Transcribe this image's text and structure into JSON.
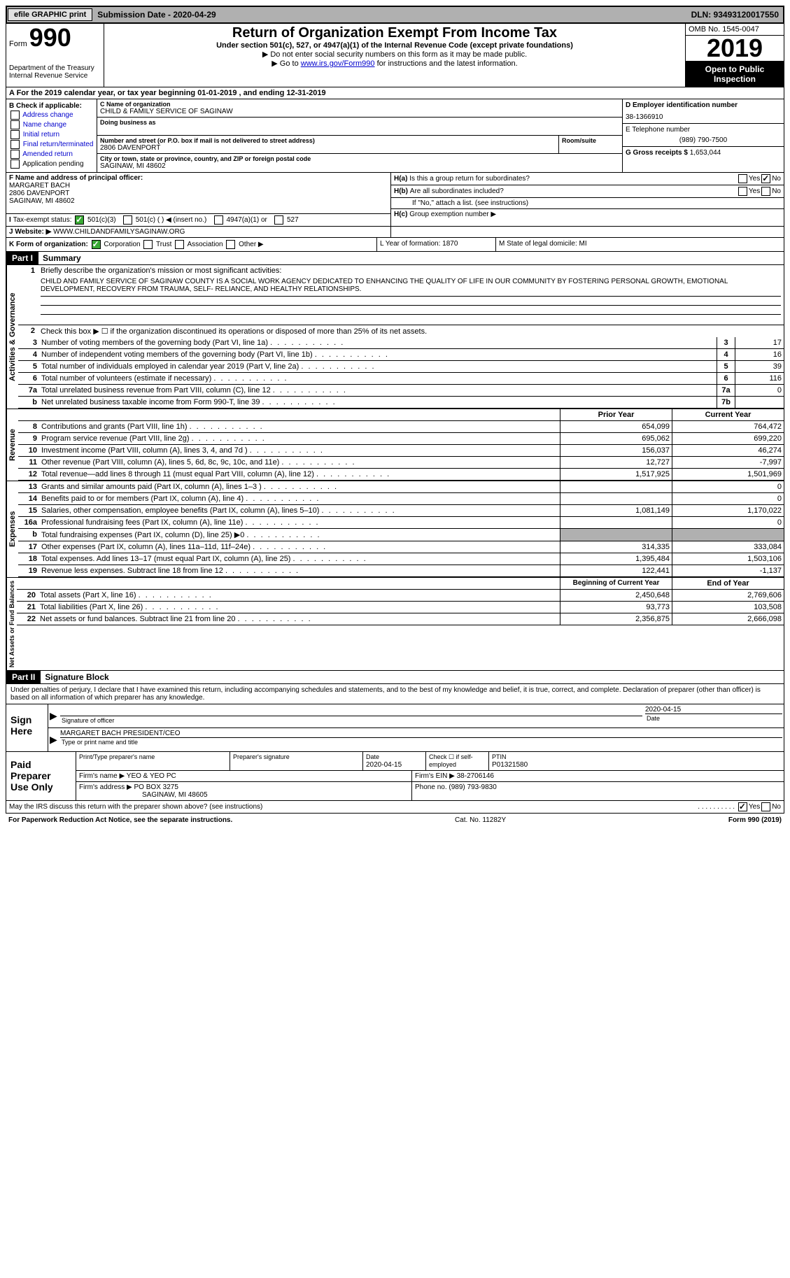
{
  "topbar": {
    "efile": "efile GRAPHIC print",
    "submission": "Submission Date - 2020-04-29",
    "dln": "DLN: 93493120017550"
  },
  "header": {
    "form_label": "Form",
    "form_number": "990",
    "dept": "Department of the Treasury\nInternal Revenue Service",
    "title": "Return of Organization Exempt From Income Tax",
    "subtitle": "Under section 501(c), 527, or 4947(a)(1) of the Internal Revenue Code (except private foundations)",
    "note1": "Do not enter social security numbers on this form as it may be made public.",
    "note2_pre": "Go to ",
    "note2_link": "www.irs.gov/Form990",
    "note2_post": " for instructions and the latest information.",
    "omb": "OMB No. 1545-0047",
    "year": "2019",
    "open": "Open to Public Inspection"
  },
  "row_a": "A For the 2019 calendar year, or tax year beginning 01-01-2019    , and ending 12-31-2019",
  "box_b": {
    "header": "B Check if applicable:",
    "opts": [
      "Address change",
      "Name change",
      "Initial return",
      "Final return/terminated",
      "Amended return",
      "Application pending"
    ]
  },
  "box_c": {
    "name_lab": "C Name of organization",
    "name": "CHILD & FAMILY SERVICE OF SAGINAW",
    "dba_lab": "Doing business as",
    "dba": "",
    "addr_lab": "Number and street (or P.O. box if mail is not delivered to street address)",
    "room_lab": "Room/suite",
    "addr": "2806 DAVENPORT",
    "city_lab": "City or town, state or province, country, and ZIP or foreign postal code",
    "city": "SAGINAW, MI  48602"
  },
  "box_d": {
    "ein_lab": "D Employer identification number",
    "ein": "38-1366910",
    "phone_lab": "E Telephone number",
    "phone": "(989) 790-7500",
    "gross_lab": "G Gross receipts $",
    "gross": "1,653,044"
  },
  "box_f": {
    "lab": "F Name and address of principal officer:",
    "name": "MARGARET BACH",
    "addr1": "2806 DAVENPORT",
    "addr2": "SAGINAW, MI  48602"
  },
  "box_h": {
    "a": "Is this a group return for subordinates?",
    "b": "Are all subordinates included?",
    "note": "If \"No,\" attach a list. (see instructions)",
    "c": "Group exemption number ▶"
  },
  "row_i": {
    "lab": "Tax-exempt status:",
    "o1": "501(c)(3)",
    "o2": "501(c) (  ) ◀ (insert no.)",
    "o3": "4947(a)(1) or",
    "o4": "527"
  },
  "row_j": {
    "lab": "J    Website: ▶",
    "val": "WWW.CHILDANDFAMILYSAGINAW.ORG"
  },
  "row_k": {
    "lab": "K Form of organization:",
    "opts": [
      "Corporation",
      "Trust",
      "Association",
      "Other ▶"
    ],
    "l": "L Year of formation: 1870",
    "m": "M State of legal domicile: MI"
  },
  "part1": {
    "header": "Part I",
    "title": "Summary"
  },
  "summary": {
    "s1_lab": "Briefly describe the organization's mission or most significant activities:",
    "s1_val": "CHILD AND FAMILY SERVICE OF SAGINAW COUNTY IS A SOCIAL WORK AGENCY DEDICATED TO ENHANCING THE QUALITY OF LIFE IN OUR COMMUNITY BY FOSTERING PERSONAL GROWTH, EMOTIONAL DEVELOPMENT, RECOVERY FROM TRAUMA, SELF- RELIANCE, AND HEALTHY RELATIONSHIPS.",
    "s2": "Check this box ▶ ☐  if the organization discontinued its operations or disposed of more than 25% of its net assets.",
    "lines": [
      {
        "n": "3",
        "d": "Number of voting members of the governing body (Part VI, line 1a)",
        "box": "3",
        "v": "17"
      },
      {
        "n": "4",
        "d": "Number of independent voting members of the governing body (Part VI, line 1b)",
        "box": "4",
        "v": "16"
      },
      {
        "n": "5",
        "d": "Total number of individuals employed in calendar year 2019 (Part V, line 2a)",
        "box": "5",
        "v": "39"
      },
      {
        "n": "6",
        "d": "Total number of volunteers (estimate if necessary)",
        "box": "6",
        "v": "116"
      },
      {
        "n": "7a",
        "d": "Total unrelated business revenue from Part VIII, column (C), line 12",
        "box": "7a",
        "v": "0"
      },
      {
        "n": "b",
        "d": "Net unrelated business taxable income from Form 990-T, line 39",
        "box": "7b",
        "v": ""
      }
    ]
  },
  "revenue": {
    "head": {
      "c1": "Prior Year",
      "c2": "Current Year"
    },
    "rows": [
      {
        "n": "8",
        "d": "Contributions and grants (Part VIII, line 1h)",
        "c1": "654,099",
        "c2": "764,472"
      },
      {
        "n": "9",
        "d": "Program service revenue (Part VIII, line 2g)",
        "c1": "695,062",
        "c2": "699,220"
      },
      {
        "n": "10",
        "d": "Investment income (Part VIII, column (A), lines 3, 4, and 7d )",
        "c1": "156,037",
        "c2": "46,274"
      },
      {
        "n": "11",
        "d": "Other revenue (Part VIII, column (A), lines 5, 6d, 8c, 9c, 10c, and 11e)",
        "c1": "12,727",
        "c2": "-7,997"
      },
      {
        "n": "12",
        "d": "Total revenue—add lines 8 through 11 (must equal Part VIII, column (A), line 12)",
        "c1": "1,517,925",
        "c2": "1,501,969"
      }
    ]
  },
  "expenses": {
    "rows": [
      {
        "n": "13",
        "d": "Grants and similar amounts paid (Part IX, column (A), lines 1–3 )",
        "c1": "",
        "c2": "0"
      },
      {
        "n": "14",
        "d": "Benefits paid to or for members (Part IX, column (A), line 4)",
        "c1": "",
        "c2": "0"
      },
      {
        "n": "15",
        "d": "Salaries, other compensation, employee benefits (Part IX, column (A), lines 5–10)",
        "c1": "1,081,149",
        "c2": "1,170,022"
      },
      {
        "n": "16a",
        "d": "Professional fundraising fees (Part IX, column (A), line 11e)",
        "c1": "",
        "c2": "0"
      },
      {
        "n": "b",
        "d": "Total fundraising expenses (Part IX, column (D), line 25) ▶0",
        "c1": "gray",
        "c2": "gray"
      },
      {
        "n": "17",
        "d": "Other expenses (Part IX, column (A), lines 11a–11d, 11f–24e)",
        "c1": "314,335",
        "c2": "333,084"
      },
      {
        "n": "18",
        "d": "Total expenses. Add lines 13–17 (must equal Part IX, column (A), line 25)",
        "c1": "1,395,484",
        "c2": "1,503,106"
      },
      {
        "n": "19",
        "d": "Revenue less expenses. Subtract line 18 from line 12",
        "c1": "122,441",
        "c2": "-1,137"
      }
    ]
  },
  "netassets": {
    "head": {
      "c1": "Beginning of Current Year",
      "c2": "End of Year"
    },
    "rows": [
      {
        "n": "20",
        "d": "Total assets (Part X, line 16)",
        "c1": "2,450,648",
        "c2": "2,769,606"
      },
      {
        "n": "21",
        "d": "Total liabilities (Part X, line 26)",
        "c1": "93,773",
        "c2": "103,508"
      },
      {
        "n": "22",
        "d": "Net assets or fund balances. Subtract line 21 from line 20",
        "c1": "2,356,875",
        "c2": "2,666,098"
      }
    ]
  },
  "part2": {
    "header": "Part II",
    "title": "Signature Block"
  },
  "sig": {
    "text": "Under penalties of perjury, I declare that I have examined this return, including accompanying schedules and statements, and to the best of my knowledge and belief, it is true, correct, and complete. Declaration of preparer (other than officer) is based on all information of which preparer has any knowledge.",
    "sign_here": "Sign Here",
    "date": "2020-04-15",
    "sig_lab": "Signature of officer",
    "date_lab": "Date",
    "name": "MARGARET BACH  PRESIDENT/CEO",
    "name_lab": "Type or print name and title"
  },
  "paid": {
    "label": "Paid Preparer Use Only",
    "h_name": "Print/Type preparer's name",
    "h_sig": "Preparer's signature",
    "h_date": "Date",
    "date": "2020-04-15",
    "h_check": "Check ☐ if self-employed",
    "h_ptin": "PTIN",
    "ptin": "P01321580",
    "firm_name_lab": "Firm's name    ▶",
    "firm_name": "YEO & YEO PC",
    "firm_ein_lab": "Firm's EIN ▶",
    "firm_ein": "38-2706146",
    "firm_addr_lab": "Firm's address ▶",
    "firm_addr": "PO BOX 3275",
    "firm_addr2": "SAGINAW, MI  48605",
    "phone_lab": "Phone no.",
    "phone": "(989) 793-9830"
  },
  "footer": {
    "q": "May the IRS discuss this return with the preparer shown above? (see instructions)",
    "paperwork": "For Paperwork Reduction Act Notice, see the separate instructions.",
    "cat": "Cat. No. 11282Y",
    "form": "Form 990 (2019)"
  },
  "labels": {
    "yes": "Yes",
    "no": "No",
    "ha": "H(a)",
    "hb": "H(b)",
    "hc": "H(c)",
    "activities": "Activities & Governance",
    "revenue": "Revenue",
    "expenses": "Expenses",
    "netassets": "Net Assets or Fund Balances"
  }
}
